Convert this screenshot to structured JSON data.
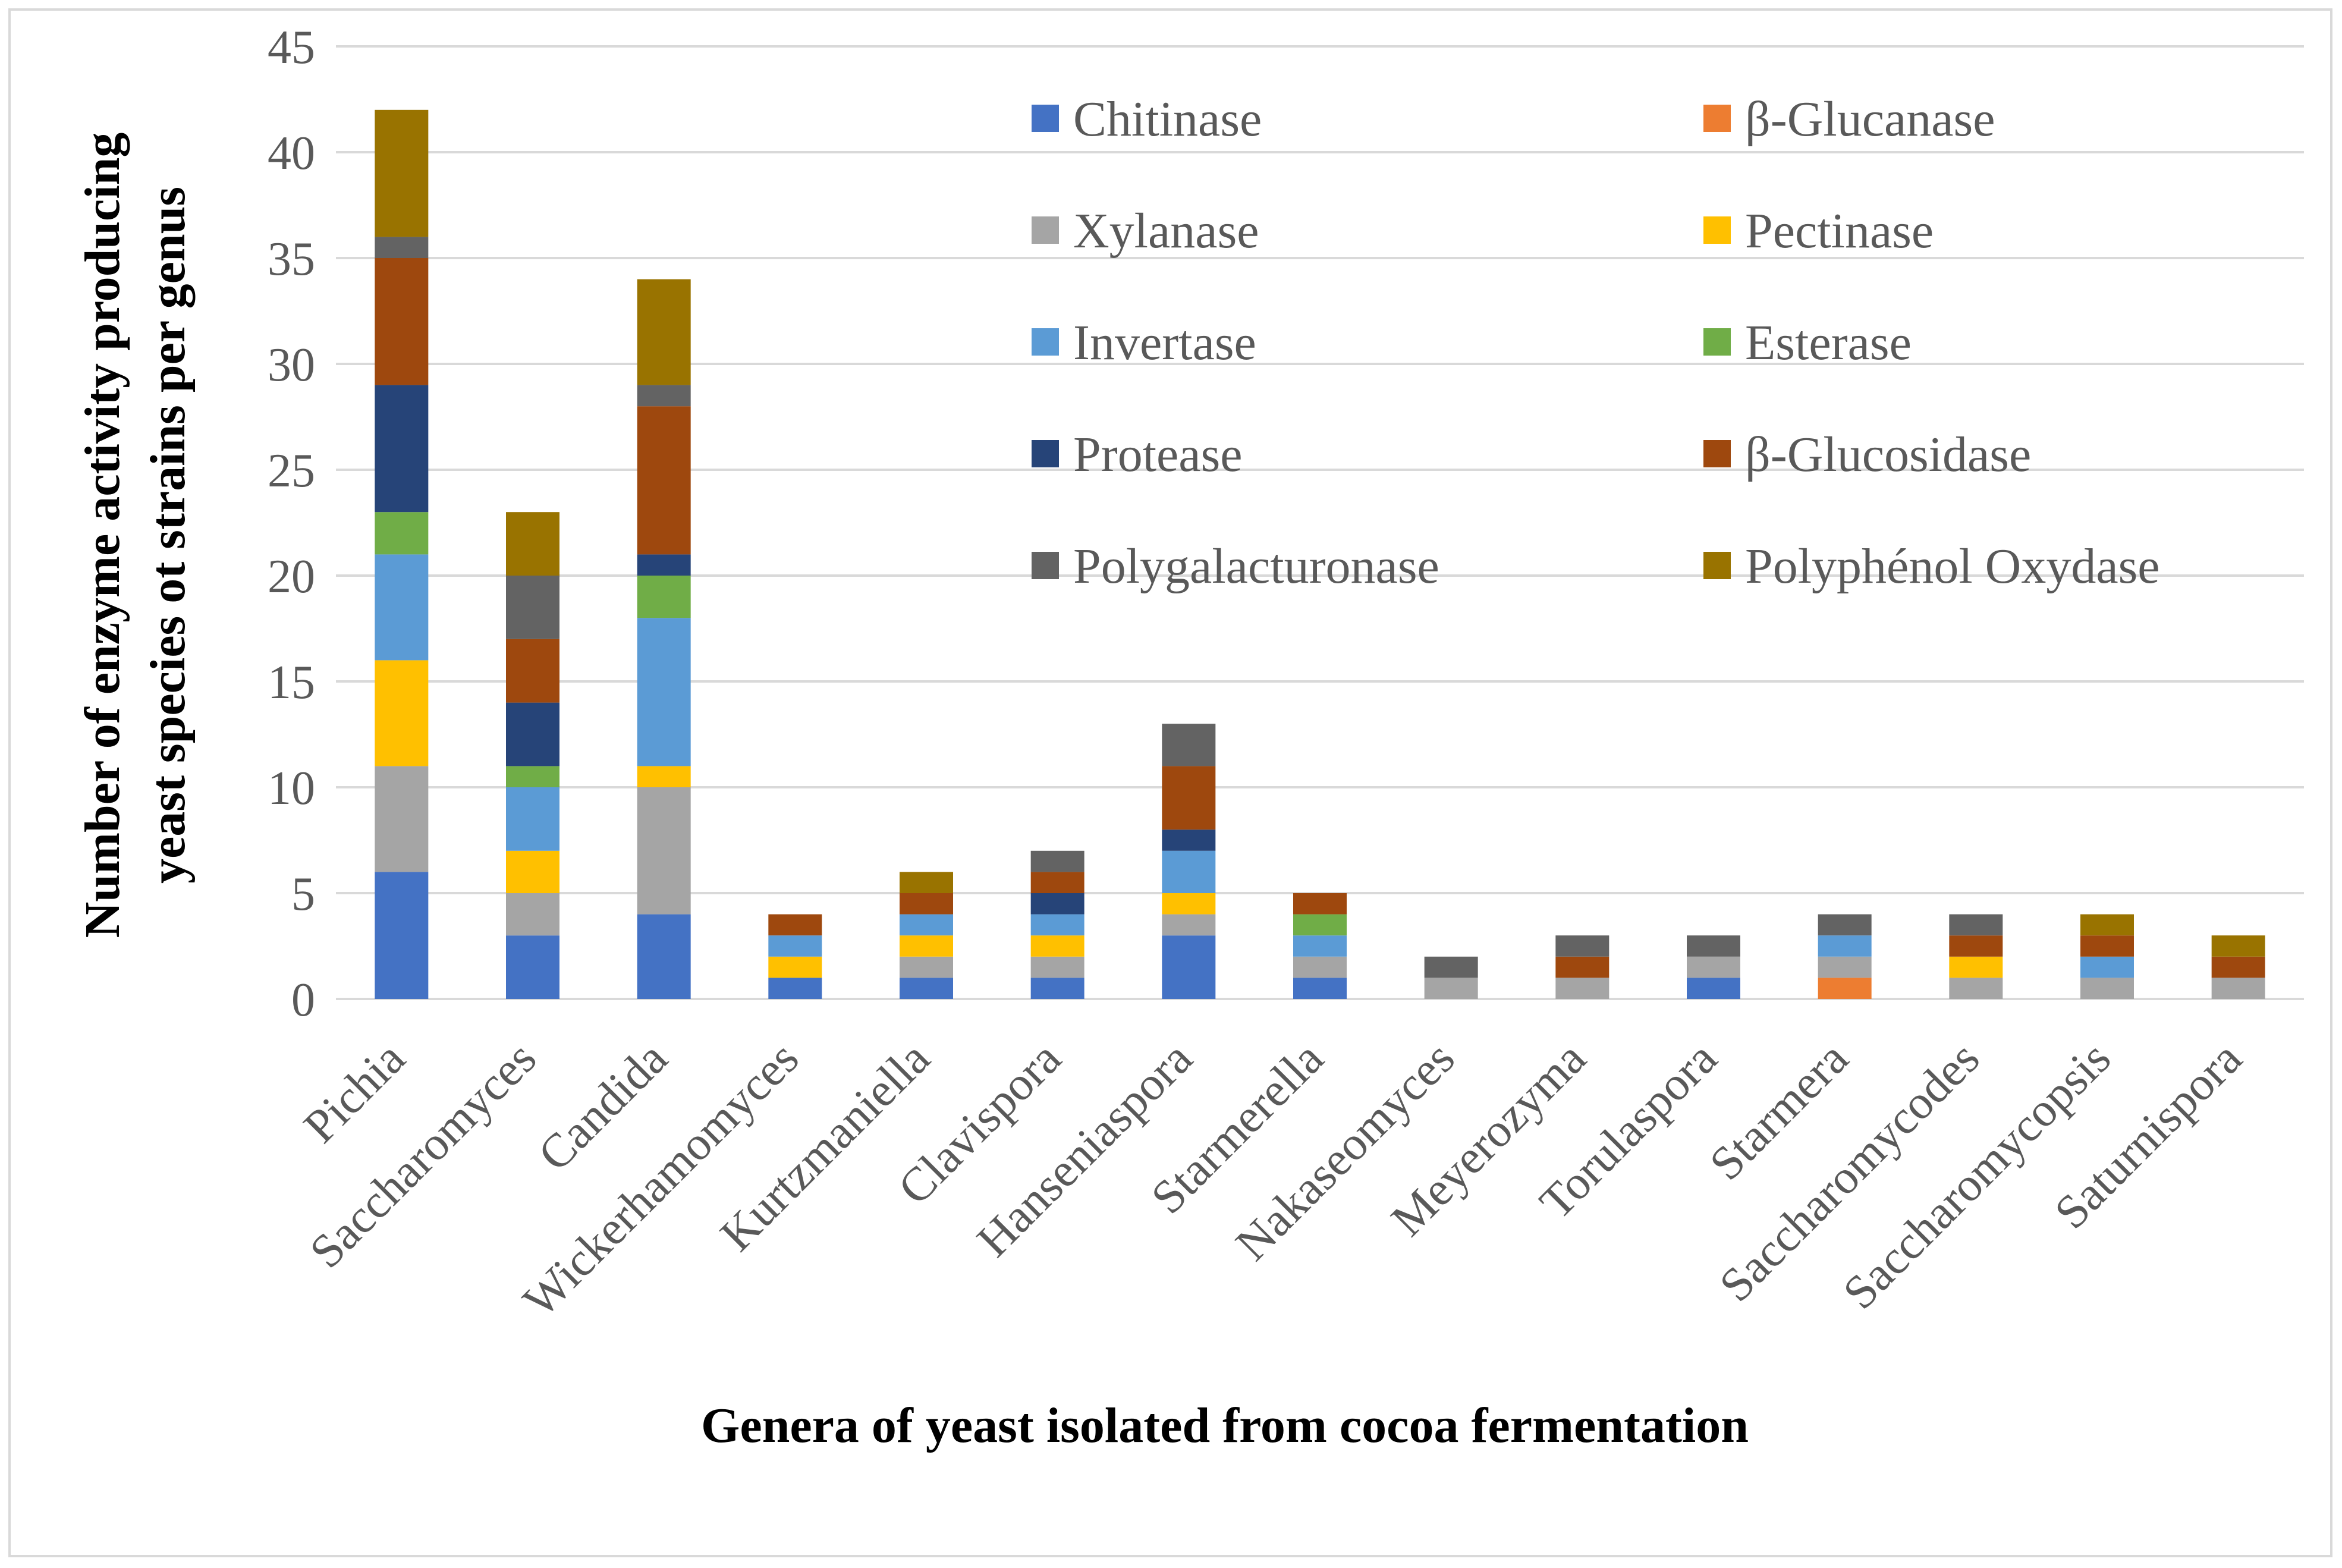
{
  "chart_data": {
    "type": "bar",
    "stacked": true,
    "title": "",
    "xlabel": "Genera of yeast isolated from cocoa fermentation",
    "ylabel_lines": [
      "Number of enzyme activity producing",
      "yeast species ot strains per genus"
    ],
    "ylim": [
      0,
      45
    ],
    "yticks": [
      0,
      5,
      10,
      15,
      20,
      25,
      30,
      35,
      40,
      45
    ],
    "grid": true,
    "legend_position": "top-right",
    "categories": [
      "Pichia",
      "Saccharomyces",
      "Candida",
      "Wickerhamomyces",
      "Kurtzmaniella",
      "Clavispora",
      "Hanseniaspora",
      "Starmerella",
      "Nakaseomyces",
      "Meyerozyma",
      "Torulaspora",
      "Starmera",
      "Saccharomycodes",
      "Saccharomycopsis",
      "Saturnispora"
    ],
    "series": [
      {
        "name": "Chitinase",
        "color": "#4472c4",
        "values": [
          6,
          3,
          4,
          1,
          1,
          1,
          3,
          1,
          0,
          0,
          1,
          0,
          0,
          0,
          0
        ]
      },
      {
        "name": "β-Glucanase",
        "color": "#ed7d31",
        "values": [
          0,
          0,
          0,
          0,
          0,
          0,
          0,
          0,
          0,
          0,
          0,
          1,
          0,
          0,
          0
        ]
      },
      {
        "name": "Xylanase",
        "color": "#a5a5a5",
        "values": [
          5,
          2,
          6,
          0,
          1,
          1,
          1,
          1,
          1,
          1,
          1,
          1,
          1,
          1,
          1
        ]
      },
      {
        "name": "Pectinase",
        "color": "#ffc000",
        "values": [
          5,
          2,
          1,
          1,
          1,
          1,
          1,
          0,
          0,
          0,
          0,
          0,
          1,
          0,
          0
        ]
      },
      {
        "name": "Invertase",
        "color": "#5b9bd5",
        "values": [
          5,
          3,
          7,
          1,
          1,
          1,
          2,
          1,
          0,
          0,
          0,
          1,
          0,
          1,
          0
        ]
      },
      {
        "name": "Esterase",
        "color": "#70ad47",
        "values": [
          2,
          1,
          2,
          0,
          0,
          0,
          0,
          1,
          0,
          0,
          0,
          0,
          0,
          0,
          0
        ]
      },
      {
        "name": "Protease",
        "color": "#264478",
        "values": [
          6,
          3,
          1,
          0,
          0,
          1,
          1,
          0,
          0,
          0,
          0,
          0,
          0,
          0,
          0
        ]
      },
      {
        "name": "β-Glucosidase",
        "color": "#9e480e",
        "values": [
          6,
          3,
          7,
          1,
          1,
          1,
          3,
          1,
          0,
          1,
          0,
          0,
          1,
          1,
          1
        ]
      },
      {
        "name": "Polygalacturonase",
        "color": "#636363",
        "values": [
          1,
          3,
          1,
          0,
          0,
          1,
          2,
          0,
          1,
          1,
          1,
          1,
          1,
          0,
          0
        ]
      },
      {
        "name": "Polyphénol Oxydase",
        "color": "#997300",
        "values": [
          6,
          3,
          5,
          0,
          1,
          0,
          0,
          0,
          0,
          0,
          0,
          0,
          0,
          1,
          1
        ]
      }
    ]
  }
}
